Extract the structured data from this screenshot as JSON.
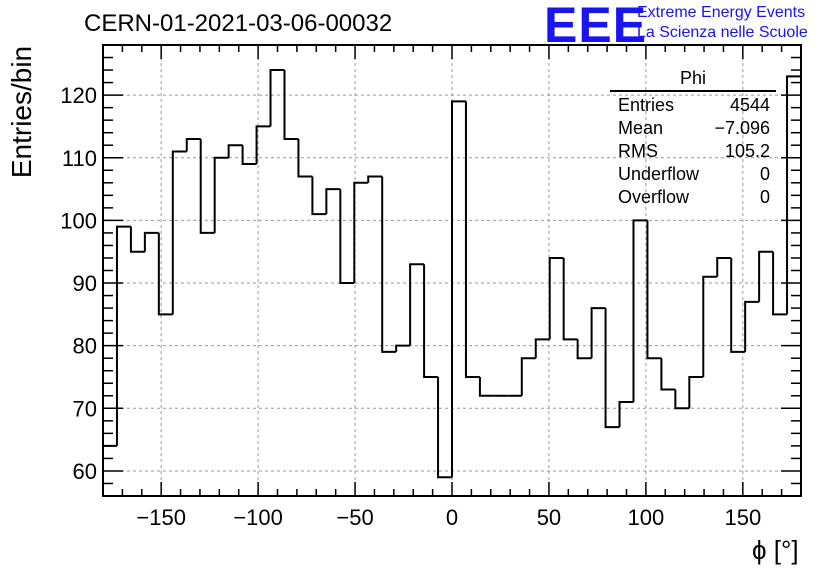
{
  "header": {
    "title": "CERN-01-2021-03-06-00032",
    "logo": "EEE",
    "logo_line1": "Extreme Energy Events",
    "logo_line2": "La Scienza nelle Scuole"
  },
  "stats_box": {
    "title": "Phi",
    "rows": [
      {
        "label": "Entries",
        "value": "4544"
      },
      {
        "label": "Mean",
        "value": "−7.096"
      },
      {
        "label": "RMS",
        "value": "105.2"
      },
      {
        "label": "Underflow",
        "value": "0"
      },
      {
        "label": "Overflow",
        "value": "0"
      }
    ]
  },
  "colors": {
    "line": "#000000",
    "grid": "#9a9a9a",
    "logo": "#1a14f0"
  },
  "chart_data": {
    "type": "histogram",
    "xlabel": "ϕ [°]",
    "ylabel": "Entries/bin",
    "xlim": [
      -180,
      180
    ],
    "ylim": [
      56,
      128
    ],
    "xticks": [
      -150,
      -100,
      -50,
      0,
      50,
      100,
      150
    ],
    "xtick_labels": [
      "−150",
      "−100",
      "−50",
      "0",
      "50",
      "100",
      "150"
    ],
    "yticks": [
      60,
      70,
      80,
      90,
      100,
      110,
      120
    ],
    "grid": true,
    "bin_width": 7.2,
    "bin_edges_start": -180,
    "values": [
      64,
      99,
      95,
      98,
      85,
      111,
      113,
      98,
      110,
      112,
      109,
      115,
      124,
      113,
      107,
      101,
      105,
      90,
      106,
      107,
      79,
      80,
      93,
      75,
      59,
      119,
      75,
      72,
      72,
      72,
      78,
      81,
      94,
      81,
      78,
      86,
      67,
      71,
      100,
      78,
      73,
      70,
      75,
      91,
      94,
      79,
      87,
      95,
      85,
      123
    ]
  }
}
